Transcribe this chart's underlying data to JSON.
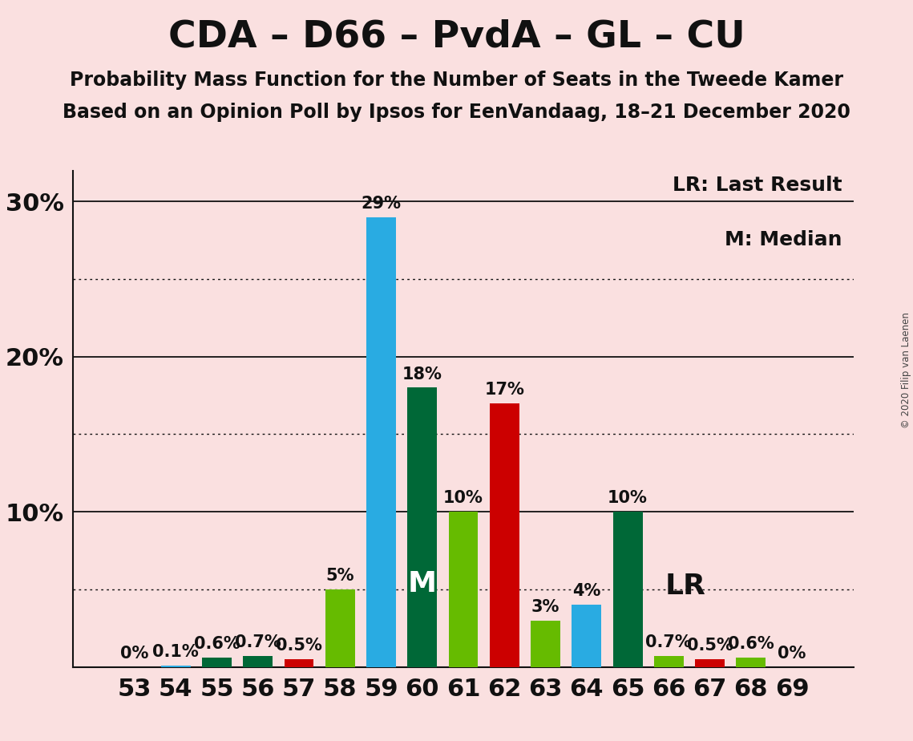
{
  "title": "CDA – D66 – PvdA – GL – CU",
  "subtitle1": "Probability Mass Function for the Number of Seats in the Tweede Kamer",
  "subtitle2": "Based on an Opinion Poll by Ipsos for EenVandaag, 18–21 December 2020",
  "copyright": "© 2020 Filip van Laenen",
  "legend_lr": "LR: Last Result",
  "legend_m": "M: Median",
  "seats": [
    53,
    54,
    55,
    56,
    57,
    58,
    59,
    60,
    61,
    62,
    63,
    64,
    65,
    66,
    67,
    68,
    69
  ],
  "probabilities": [
    0.0,
    0.1,
    0.6,
    0.7,
    0.5,
    5.0,
    29.0,
    18.0,
    10.0,
    17.0,
    3.0,
    4.0,
    10.0,
    0.7,
    0.5,
    0.6,
    0.0
  ],
  "bar_colors": [
    "#29ABE2",
    "#29ABE2",
    "#006837",
    "#006837",
    "#CC0000",
    "#66BB00",
    "#29ABE2",
    "#006837",
    "#66BB00",
    "#CC0000",
    "#66BB00",
    "#29ABE2",
    "#006837",
    "#66BB00",
    "#CC0000",
    "#66BB00",
    "#29ABE2"
  ],
  "median_seat": 60,
  "lr_seat": 65,
  "background_color": "#FAE0E0",
  "ylim_max": 32,
  "solid_lines": [
    10,
    20,
    30
  ],
  "dotted_lines": [
    5,
    15,
    25
  ],
  "title_fontsize": 34,
  "subtitle_fontsize": 17,
  "axis_tick_fontsize": 22,
  "bar_label_fontsize": 15,
  "legend_fontsize": 18,
  "bar_width": 0.72
}
